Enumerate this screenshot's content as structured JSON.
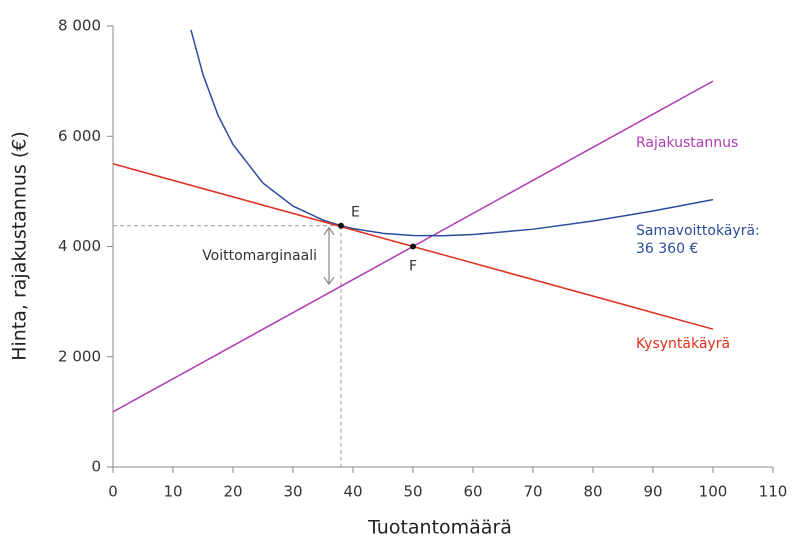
{
  "chart_data": {
    "type": "line",
    "x_label": "Tuotantomäärä",
    "y_label": "Hinta, rajakustannus (€)",
    "xlim": [
      0,
      110
    ],
    "xticks": [
      0,
      10,
      20,
      30,
      40,
      50,
      60,
      70,
      80,
      90,
      100,
      110
    ],
    "ylim": [
      0,
      8000
    ],
    "yticks": [
      0,
      {
        "value": 2000,
        "label": "2 000"
      },
      {
        "value": 4000,
        "label": "4 000"
      },
      {
        "value": 6000,
        "label": "6 000"
      },
      {
        "value": 8000,
        "label": "8 000"
      }
    ],
    "series": [
      {
        "name": "Rajakustannus",
        "color": "#b03ab3",
        "x": [
          0,
          100
        ],
        "values": [
          1000,
          7000
        ]
      },
      {
        "name": "Samavoittokäyrä: 36 360 €",
        "color": "#2b4c9c",
        "x": [
          13,
          15,
          17.5,
          20,
          25,
          30,
          35,
          38,
          40,
          45,
          50,
          55,
          60,
          70,
          80,
          90,
          100
        ],
        "values": [
          7928,
          7117,
          6382,
          5850,
          5150,
          4733,
          4479,
          4377,
          4325,
          4239,
          4200,
          4195,
          4217,
          4314,
          4463,
          4644,
          4850
        ]
      },
      {
        "name": "Kysyntäkäyrä",
        "color": "#e0301e",
        "x": [
          0,
          100
        ],
        "values": [
          5500,
          2500
        ]
      }
    ],
    "points": [
      {
        "label": "E",
        "x": 38,
        "y": 4377
      },
      {
        "label": "F",
        "x": 50,
        "y": 4000
      }
    ],
    "margin_annotation": {
      "label": "Voittomarginaali",
      "x": 36,
      "y_from": 3280,
      "y_to": 4377
    }
  }
}
